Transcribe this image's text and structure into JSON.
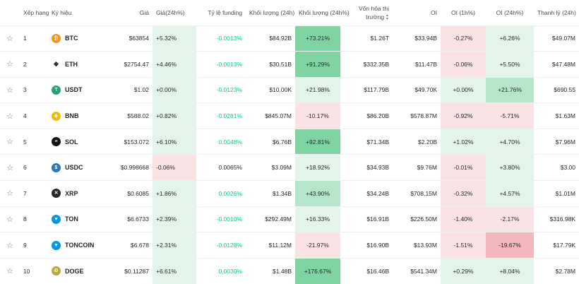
{
  "headers": {
    "rank": "Xếp hạng",
    "symbol": "Ký hiệu",
    "price": "Giá",
    "change24h": "Giá(24h%)",
    "funding": "Tỷ lệ funding",
    "volume24h": "Khối lượng (24h)",
    "volume24h_pct": "Khối lượng (24h%)",
    "market_cap": "Vốn hóa thị trường",
    "oi": "OI",
    "oi1h": "OI (1h%)",
    "oi24h": "OI (24h%)",
    "liquidation": "Thanh lý (24h)"
  },
  "colors": {
    "pos_strong": "#7fd4a2",
    "pos_mid": "#b6e6c9",
    "pos_light": "#e3f5ea",
    "neg_mid": "#f2b8bd",
    "neg_light": "#fbe3e5",
    "funding_pos": "#0ecb81"
  },
  "rows": [
    {
      "rank": "1",
      "symbol": "BTC",
      "icon": "bitcoin-icon",
      "icon_color": "#f7931a",
      "icon_glyph": "₿",
      "price": "$63854",
      "change": "+5.32%",
      "change_bg": "#e3f5ea",
      "funding": "-0.0013%",
      "funding_pos": true,
      "volume": "$84.92B",
      "vol_pct": "+73.21%",
      "vol_bg": "#7fd4a2",
      "mcap": "$1.26T",
      "oi": "$33.94B",
      "oi1h": "-0.27%",
      "oi1h_bg": "#fbe3e5",
      "oi24": "+6.26%",
      "oi24_bg": "#e3f5ea",
      "liq": "$49.07M"
    },
    {
      "rank": "2",
      "symbol": "ETH",
      "icon": "ethereum-icon",
      "icon_color": "#ffffff",
      "icon_glyph": "◆",
      "price": "$2754.47",
      "change": "+4.46%",
      "change_bg": "#e3f5ea",
      "funding": "-0.0013%",
      "funding_pos": true,
      "volume": "$30.51B",
      "vol_pct": "+91.29%",
      "vol_bg": "#7fd4a2",
      "mcap": "$332.35B",
      "oi": "$11.47B",
      "oi1h": "-0.06%",
      "oi1h_bg": "#fbe3e5",
      "oi24": "+5.50%",
      "oi24_bg": "#e3f5ea",
      "liq": "$47.48M"
    },
    {
      "rank": "3",
      "symbol": "USDT",
      "icon": "tether-icon",
      "icon_color": "#26a17b",
      "icon_glyph": "T",
      "price": "$1.02",
      "change": "+0.00%",
      "change_bg": "#e3f5ea",
      "funding": "-0.0123%",
      "funding_pos": true,
      "volume": "$10.00K",
      "vol_pct": "+21.98%",
      "vol_bg": "#e3f5ea",
      "mcap": "$117.79B",
      "oi": "$49.70K",
      "oi1h": "+0.00%",
      "oi1h_bg": "#e3f5ea",
      "oi24": "+21.76%",
      "oi24_bg": "#b6e6c9",
      "liq": "$690.55"
    },
    {
      "rank": "4",
      "symbol": "BNB",
      "icon": "bnb-icon",
      "icon_color": "#f0b90b",
      "icon_glyph": "◈",
      "price": "$588.02",
      "change": "+0.82%",
      "change_bg": "#e3f5ea",
      "funding": "-0.0281%",
      "funding_pos": true,
      "volume": "$845.07M",
      "vol_pct": "-10.17%",
      "vol_bg": "#fbe3e5",
      "mcap": "$86.20B",
      "oi": "$578.87M",
      "oi1h": "-0.92%",
      "oi1h_bg": "#fbe3e5",
      "oi24": "-5.71%",
      "oi24_bg": "#fbe3e5",
      "liq": "$1.63M"
    },
    {
      "rank": "5",
      "symbol": "SOL",
      "icon": "solana-icon",
      "icon_color": "#14151a",
      "icon_glyph": "≡",
      "price": "$153.072",
      "change": "+6.10%",
      "change_bg": "#e3f5ea",
      "funding": "0.0048%",
      "funding_pos": true,
      "volume": "$6.76B",
      "vol_pct": "+92.81%",
      "vol_bg": "#7fd4a2",
      "mcap": "$71.34B",
      "oi": "$2.20B",
      "oi1h": "+1.02%",
      "oi1h_bg": "#e3f5ea",
      "oi24": "+4.70%",
      "oi24_bg": "#e3f5ea",
      "liq": "$7.96M"
    },
    {
      "rank": "6",
      "symbol": "USDC",
      "icon": "usdc-icon",
      "icon_color": "#2775ca",
      "icon_glyph": "$",
      "price": "$0.998668",
      "change": "-0.06%",
      "change_bg": "#fbe3e5",
      "funding": "0.0065%",
      "funding_pos": false,
      "volume": "$3.09M",
      "vol_pct": "+18.92%",
      "vol_bg": "#e3f5ea",
      "mcap": "$34.93B",
      "oi": "$9.76M",
      "oi1h": "-0.01%",
      "oi1h_bg": "#fbe3e5",
      "oi24": "+3.80%",
      "oi24_bg": "#e3f5ea",
      "liq": "$3.00"
    },
    {
      "rank": "7",
      "symbol": "XRP",
      "icon": "xrp-icon",
      "icon_color": "#23292f",
      "icon_glyph": "✕",
      "price": "$0.6085",
      "change": "+1.86%",
      "change_bg": "#e3f5ea",
      "funding": "0.0026%",
      "funding_pos": true,
      "volume": "$1.34B",
      "vol_pct": "+43.90%",
      "vol_bg": "#b6e6c9",
      "mcap": "$34.24B",
      "oi": "$708.15M",
      "oi1h": "-0.32%",
      "oi1h_bg": "#fbe3e5",
      "oi24": "+4.57%",
      "oi24_bg": "#e3f5ea",
      "liq": "$1.01M"
    },
    {
      "rank": "8",
      "symbol": "TON",
      "icon": "ton-icon",
      "icon_color": "#0098ea",
      "icon_glyph": "▼",
      "price": "$6.6733",
      "change": "+2.39%",
      "change_bg": "#e3f5ea",
      "funding": "-0.0010%",
      "funding_pos": true,
      "volume": "$292.49M",
      "vol_pct": "+16.33%",
      "vol_bg": "#e3f5ea",
      "mcap": "$16.91B",
      "oi": "$226.50M",
      "oi1h": "-1.40%",
      "oi1h_bg": "#fbe3e5",
      "oi24": "-2.17%",
      "oi24_bg": "#fbe3e5",
      "liq": "$316.98K"
    },
    {
      "rank": "9",
      "symbol": "TONCOIN",
      "icon": "toncoin-icon",
      "icon_color": "#0098ea",
      "icon_glyph": "▼",
      "price": "$6.678",
      "change": "+2.31%",
      "change_bg": "#e3f5ea",
      "funding": "-0.0128%",
      "funding_pos": true,
      "volume": "$11.12M",
      "vol_pct": "-21.97%",
      "vol_bg": "#fbe3e5",
      "mcap": "$16.90B",
      "oi": "$13.93M",
      "oi1h": "-1.51%",
      "oi1h_bg": "#fbe3e5",
      "oi24": "-19.67%",
      "oi24_bg": "#f2b8bd",
      "liq": "$17.79K"
    },
    {
      "rank": "10",
      "symbol": "DOGE",
      "icon": "dogecoin-icon",
      "icon_color": "#c2a633",
      "icon_glyph": "Ð",
      "price": "$0.11287",
      "change": "+6.61%",
      "change_bg": "#e3f5ea",
      "funding": "0.0030%",
      "funding_pos": true,
      "volume": "$1.48B",
      "vol_pct": "+176.67%",
      "vol_bg": "#7fd4a2",
      "mcap": "$16.46B",
      "oi": "$541.34M",
      "oi1h": "+0.29%",
      "oi1h_bg": "#e3f5ea",
      "oi24": "+8.04%",
      "oi24_bg": "#e3f5ea",
      "liq": "$2.78M"
    }
  ]
}
